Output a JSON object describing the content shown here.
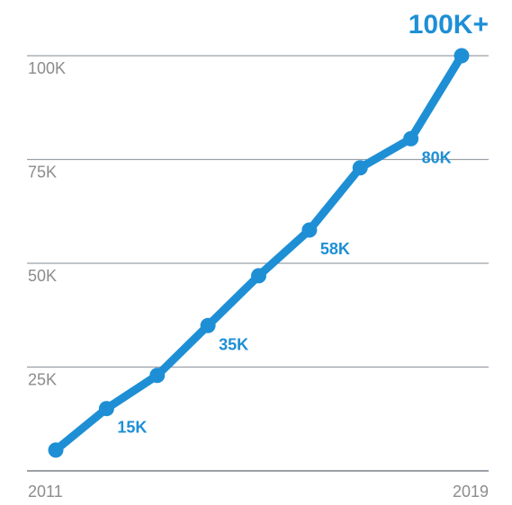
{
  "chart_data": {
    "type": "line",
    "x": [
      2011,
      2012,
      2013,
      2014,
      2015,
      2016,
      2017,
      2018,
      2019
    ],
    "x_tick_labels": [
      "2011",
      "2019"
    ],
    "series": [
      {
        "values": [
          5,
          15,
          23,
          35,
          47,
          58,
          73,
          80,
          100
        ],
        "color": "#1e8fd5"
      }
    ],
    "y_ticks": [
      25,
      50,
      75,
      100
    ],
    "y_tick_labels": [
      "25K",
      "50K",
      "75K",
      "100K"
    ],
    "ylim": [
      0,
      110
    ],
    "grid": true,
    "data_labels": [
      {
        "index": 1,
        "text": "15K"
      },
      {
        "index": 3,
        "text": "35K"
      },
      {
        "index": 5,
        "text": "58K"
      },
      {
        "index": 7,
        "text": "80K"
      }
    ],
    "headline_label": "100K+",
    "accent_color": "#1e8fd5",
    "grid_color": "#9aa0a6",
    "tick_color": "#8c8c8c"
  }
}
